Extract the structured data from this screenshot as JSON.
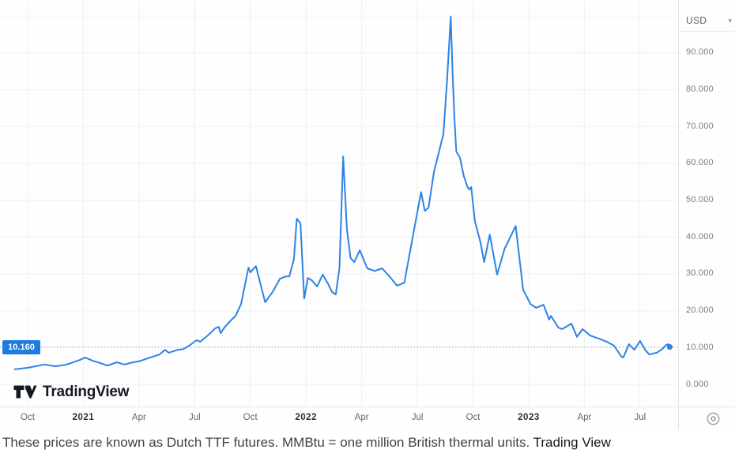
{
  "toolbar": {
    "currency_label": "USD"
  },
  "logo": {
    "text": "TradingView"
  },
  "price_scale": {
    "current_price_label": "10.160"
  },
  "caption": {
    "text": "These prices are known as Dutch TTF futures. MMBtu = one million British thermal units. ",
    "source": "Trading View"
  },
  "colors": {
    "line": "#2E82E5",
    "price_tag_bg": "#1E7BE0",
    "grid": "#f0eff2",
    "axis_text": "#7a7e87",
    "separator": "#e4e6ea"
  },
  "chart_data": {
    "type": "line",
    "title": "Dutch TTF natural gas futures price, USD per MMBtu",
    "x_unit": "months since Oct 2020",
    "ylim": [
      0,
      104
    ],
    "grid": true,
    "legend_position": "none",
    "current_price": 10.16,
    "x_ticks": [
      {
        "m": 0,
        "label": "Oct",
        "bold": false
      },
      {
        "m": 3,
        "label": "2021",
        "bold": true
      },
      {
        "m": 6,
        "label": "Apr",
        "bold": false
      },
      {
        "m": 9,
        "label": "Jul",
        "bold": false
      },
      {
        "m": 12,
        "label": "Oct",
        "bold": false
      },
      {
        "m": 15,
        "label": "2022",
        "bold": true
      },
      {
        "m": 18,
        "label": "Apr",
        "bold": false
      },
      {
        "m": 21,
        "label": "Jul",
        "bold": false
      },
      {
        "m": 24,
        "label": "Oct",
        "bold": false
      },
      {
        "m": 27,
        "label": "2023",
        "bold": true
      },
      {
        "m": 30,
        "label": "Apr",
        "bold": false
      },
      {
        "m": 33,
        "label": "Jul",
        "bold": false
      }
    ],
    "y_ticks": [
      {
        "v": 0,
        "label": "0.000"
      },
      {
        "v": 10,
        "label": "10.000"
      },
      {
        "v": 20,
        "label": "20.000"
      },
      {
        "v": 30,
        "label": "30.000"
      },
      {
        "v": 40,
        "label": "40.000"
      },
      {
        "v": 50,
        "label": "50.000"
      },
      {
        "v": 60,
        "label": "60.000"
      },
      {
        "v": 70,
        "label": "70.000"
      },
      {
        "v": 80,
        "label": "80.000"
      },
      {
        "v": 90,
        "label": "90.000"
      }
    ],
    "y_gridlines": [
      0,
      10,
      20,
      30,
      40,
      50,
      60,
      70,
      80,
      90,
      100
    ],
    "series": [
      {
        "name": "Dutch TTF futures (USD)",
        "points": [
          [
            -0.7,
            4.1
          ],
          [
            0,
            4.5
          ],
          [
            0.9,
            5.4
          ],
          [
            1.5,
            4.9
          ],
          [
            2.1,
            5.4
          ],
          [
            2.8,
            6.6
          ],
          [
            3.1,
            7.3
          ],
          [
            3.5,
            6.4
          ],
          [
            3.9,
            5.8
          ],
          [
            4.3,
            5.1
          ],
          [
            4.8,
            6.0
          ],
          [
            5.2,
            5.4
          ],
          [
            5.7,
            6.0
          ],
          [
            6.1,
            6.4
          ],
          [
            6.6,
            7.3
          ],
          [
            7.1,
            8.1
          ],
          [
            7.4,
            9.4
          ],
          [
            7.6,
            8.6
          ],
          [
            8.1,
            9.4
          ],
          [
            8.4,
            9.6
          ],
          [
            8.7,
            10.5
          ],
          [
            9.1,
            12.0
          ],
          [
            9.3,
            11.6
          ],
          [
            9.5,
            12.4
          ],
          [
            9.8,
            13.7
          ],
          [
            10.1,
            15.2
          ],
          [
            10.3,
            15.6
          ],
          [
            10.4,
            13.9
          ],
          [
            10.6,
            15.4
          ],
          [
            10.9,
            17.1
          ],
          [
            11.2,
            18.6
          ],
          [
            11.5,
            21.8
          ],
          [
            11.9,
            31.7
          ],
          [
            12.0,
            30.4
          ],
          [
            12.3,
            32.1
          ],
          [
            12.8,
            22.3
          ],
          [
            13.2,
            25.1
          ],
          [
            13.6,
            28.7
          ],
          [
            13.9,
            29.3
          ],
          [
            14.1,
            29.3
          ],
          [
            14.35,
            34.0
          ],
          [
            14.5,
            45.0
          ],
          [
            14.7,
            43.7
          ],
          [
            14.9,
            23.3
          ],
          [
            15.1,
            28.9
          ],
          [
            15.3,
            28.3
          ],
          [
            15.6,
            26.6
          ],
          [
            15.9,
            29.8
          ],
          [
            16.2,
            27.2
          ],
          [
            16.4,
            25.1
          ],
          [
            16.6,
            24.4
          ],
          [
            16.8,
            31.5
          ],
          [
            17.0,
            61.9
          ],
          [
            17.2,
            42.2
          ],
          [
            17.4,
            34.3
          ],
          [
            17.6,
            33.2
          ],
          [
            17.9,
            36.4
          ],
          [
            18.3,
            31.5
          ],
          [
            18.7,
            30.8
          ],
          [
            19.1,
            31.5
          ],
          [
            19.5,
            29.3
          ],
          [
            19.9,
            26.8
          ],
          [
            20.3,
            27.6
          ],
          [
            20.7,
            38.6
          ],
          [
            21.2,
            52.2
          ],
          [
            21.4,
            47.1
          ],
          [
            21.6,
            48.0
          ],
          [
            21.9,
            57.8
          ],
          [
            22.4,
            67.9
          ],
          [
            22.6,
            82.2
          ],
          [
            22.8,
            99.8
          ],
          [
            22.9,
            84.4
          ],
          [
            23.0,
            72.2
          ],
          [
            23.1,
            63.2
          ],
          [
            23.3,
            61.5
          ],
          [
            23.5,
            56.6
          ],
          [
            23.7,
            53.6
          ],
          [
            23.8,
            52.9
          ],
          [
            23.9,
            53.6
          ],
          [
            24.1,
            44.3
          ],
          [
            24.4,
            38.6
          ],
          [
            24.6,
            33.2
          ],
          [
            24.9,
            40.7
          ],
          [
            25.3,
            29.8
          ],
          [
            25.7,
            36.8
          ],
          [
            26.3,
            43.0
          ],
          [
            26.7,
            25.7
          ],
          [
            27.1,
            21.8
          ],
          [
            27.4,
            20.8
          ],
          [
            27.8,
            21.6
          ],
          [
            28.1,
            17.6
          ],
          [
            28.2,
            18.6
          ],
          [
            28.6,
            15.4
          ],
          [
            28.8,
            15.0
          ],
          [
            29.3,
            16.5
          ],
          [
            29.6,
            12.9
          ],
          [
            29.9,
            15.0
          ],
          [
            30.3,
            13.3
          ],
          [
            30.9,
            12.2
          ],
          [
            31.2,
            11.6
          ],
          [
            31.6,
            10.5
          ],
          [
            31.8,
            9.0
          ],
          [
            32.0,
            7.5
          ],
          [
            32.1,
            7.3
          ],
          [
            32.4,
            10.9
          ],
          [
            32.7,
            9.4
          ],
          [
            33.0,
            11.8
          ],
          [
            33.3,
            9.2
          ],
          [
            33.5,
            8.1
          ],
          [
            33.7,
            8.4
          ],
          [
            33.9,
            8.6
          ],
          [
            34.2,
            9.6
          ],
          [
            34.4,
            10.7
          ],
          [
            34.5,
            10.9
          ],
          [
            34.6,
            10.16
          ]
        ]
      }
    ]
  }
}
